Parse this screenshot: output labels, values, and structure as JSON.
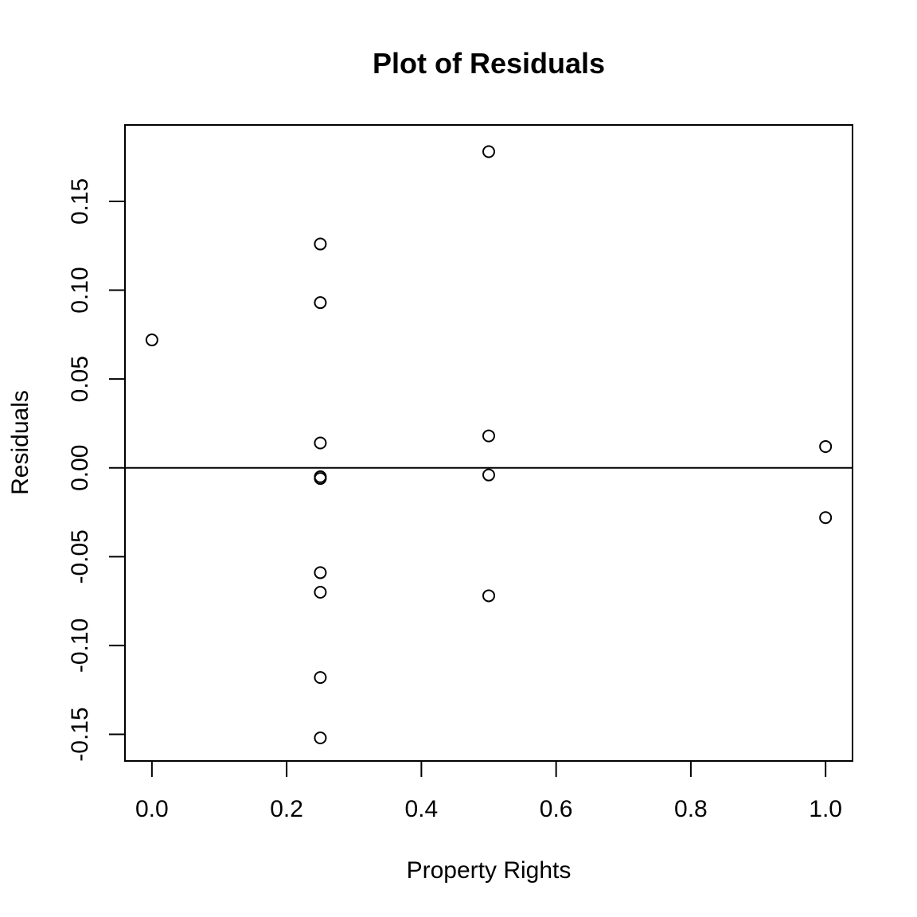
{
  "chart_data": {
    "type": "scatter",
    "title": "Plot of Residuals",
    "xlabel": "Property Rights",
    "ylabel": "Residuals",
    "xlim": [
      -0.04,
      1.04
    ],
    "ylim": [
      -0.165,
      0.193
    ],
    "x_ticks": [
      0.0,
      0.2,
      0.4,
      0.6,
      0.8,
      1.0
    ],
    "x_tick_labels": [
      "0.0",
      "0.2",
      "0.4",
      "0.6",
      "0.8",
      "1.0"
    ],
    "y_ticks": [
      -0.15,
      -0.1,
      -0.05,
      0.0,
      0.05,
      0.1,
      0.15
    ],
    "y_tick_labels": [
      "-0.15",
      "-0.10",
      "-0.05",
      "0.00",
      "0.05",
      "0.10",
      "0.15"
    ],
    "reference_line": {
      "y": 0.0,
      "orientation": "horizontal"
    },
    "grid": false,
    "marker": "open-circle",
    "colors": {
      "foreground": "#000000",
      "background": "#ffffff"
    },
    "points": [
      {
        "x": 0.0,
        "y": 0.072
      },
      {
        "x": 0.25,
        "y": 0.126
      },
      {
        "x": 0.25,
        "y": 0.093
      },
      {
        "x": 0.25,
        "y": 0.014
      },
      {
        "x": 0.25,
        "y": -0.005
      },
      {
        "x": 0.25,
        "y": -0.006
      },
      {
        "x": 0.25,
        "y": -0.059
      },
      {
        "x": 0.25,
        "y": -0.07
      },
      {
        "x": 0.25,
        "y": -0.118
      },
      {
        "x": 0.25,
        "y": -0.152
      },
      {
        "x": 0.5,
        "y": 0.178
      },
      {
        "x": 0.5,
        "y": 0.018
      },
      {
        "x": 0.5,
        "y": -0.004
      },
      {
        "x": 0.5,
        "y": -0.072
      },
      {
        "x": 1.0,
        "y": 0.012
      },
      {
        "x": 1.0,
        "y": -0.028
      }
    ]
  }
}
